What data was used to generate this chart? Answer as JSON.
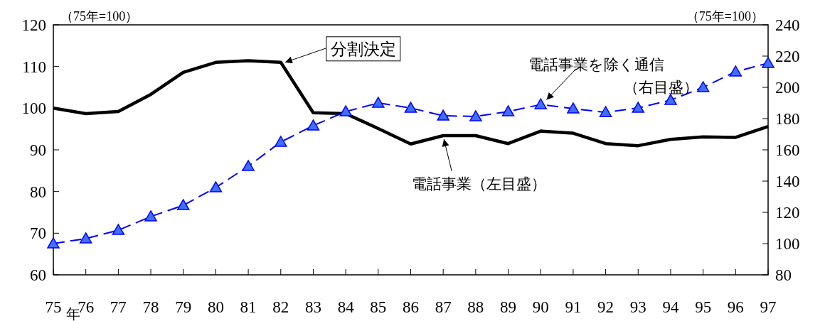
{
  "chart_data": {
    "type": "line",
    "ylabel": "（75年=100）",
    "y2label": "（75年=100）",
    "xlabel": "年",
    "categories": [
      "75",
      "76",
      "77",
      "78",
      "79",
      "80",
      "81",
      "82",
      "83",
      "84",
      "85",
      "86",
      "87",
      "88",
      "89",
      "90",
      "91",
      "92",
      "93",
      "94",
      "95",
      "96",
      "97"
    ],
    "series": [
      {
        "color": "#000000",
        "line_style": "solid",
        "marker": "none",
        "values": [
          100,
          98.7,
          99.2,
          103.3,
          108.6,
          111.0,
          111.4,
          111.0,
          98.9,
          98.7,
          95.1,
          91.4,
          93.4,
          93.4,
          91.5,
          94.5,
          94.0,
          91.5,
          91.0,
          92.5,
          93.1,
          93.0,
          95.6
        ]
      },
      {
        "color": "#0000ff",
        "axis": "y2",
        "line_style": "dashed",
        "marker": "triangle",
        "values": [
          100,
          103.2,
          108.6,
          117.3,
          124.5,
          135.9,
          149.5,
          165,
          175.5,
          184.5,
          190,
          186.8,
          181.8,
          181.4,
          184.5,
          189,
          186.4,
          184,
          186.8,
          191.8,
          200,
          210,
          215.5
        ]
      }
    ],
    "ylim": [
      60,
      120
    ],
    "yticks": [
      60,
      70,
      80,
      90,
      100,
      110,
      120
    ],
    "y2lim": [
      80,
      240
    ],
    "y2ticks": [
      80,
      100,
      120,
      140,
      160,
      180,
      200,
      220,
      240
    ],
    "grid": false,
    "annotations": [
      {
        "text": "分割決定",
        "x": "82",
        "y": 111.0
      },
      "電話事業を除く通信",
      "（右目盛）",
      {
        "text": "電話事業（左目盛）",
        "x": "87",
        "y": 93.4
      }
    ]
  }
}
